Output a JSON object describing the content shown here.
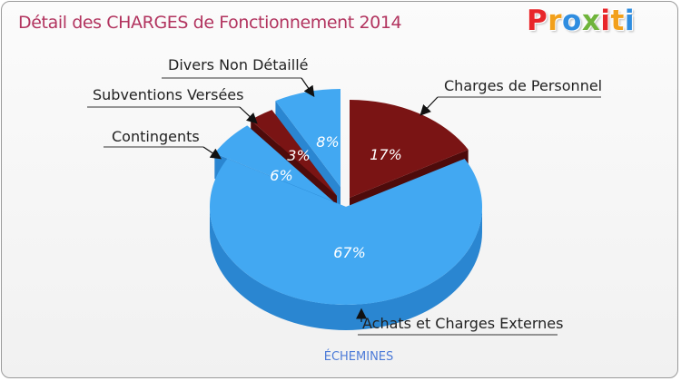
{
  "title": "Détail des CHARGES de Fonctionnement 2014",
  "logo": {
    "letters": [
      "P",
      "r",
      "o",
      "x",
      "i",
      "t",
      "i"
    ],
    "colors": [
      "#e8262a",
      "#f2a01b",
      "#2f8de0",
      "#6fb43b",
      "#e8262a",
      "#f2a01b",
      "#2f8de0"
    ]
  },
  "commune": "ÉCHEMINES",
  "chart_data": {
    "type": "pie",
    "title": "Détail des CHARGES de Fonctionnement 2014",
    "slices": [
      {
        "label": "Charges de Personnel",
        "value": 17,
        "pct_label": "17%",
        "color": "#7a1414",
        "side_color": "#4e0b0b"
      },
      {
        "label": "Achats et Charges Externes",
        "value": 67,
        "pct_label": "67%",
        "color": "#42a8f2",
        "side_color": "#2a86d1"
      },
      {
        "label": "Contingents",
        "value": 6,
        "pct_label": "6%",
        "color": "#42a8f2",
        "side_color": "#2a86d1"
      },
      {
        "label": "Subventions Versées",
        "value": 3,
        "pct_label": "3%",
        "color": "#7a1414",
        "side_color": "#4e0b0b"
      },
      {
        "label": "Divers Non Détaillé",
        "value": 8,
        "pct_label": "8%",
        "color": "#42a8f2",
        "side_color": "#2a86d1"
      }
    ]
  }
}
